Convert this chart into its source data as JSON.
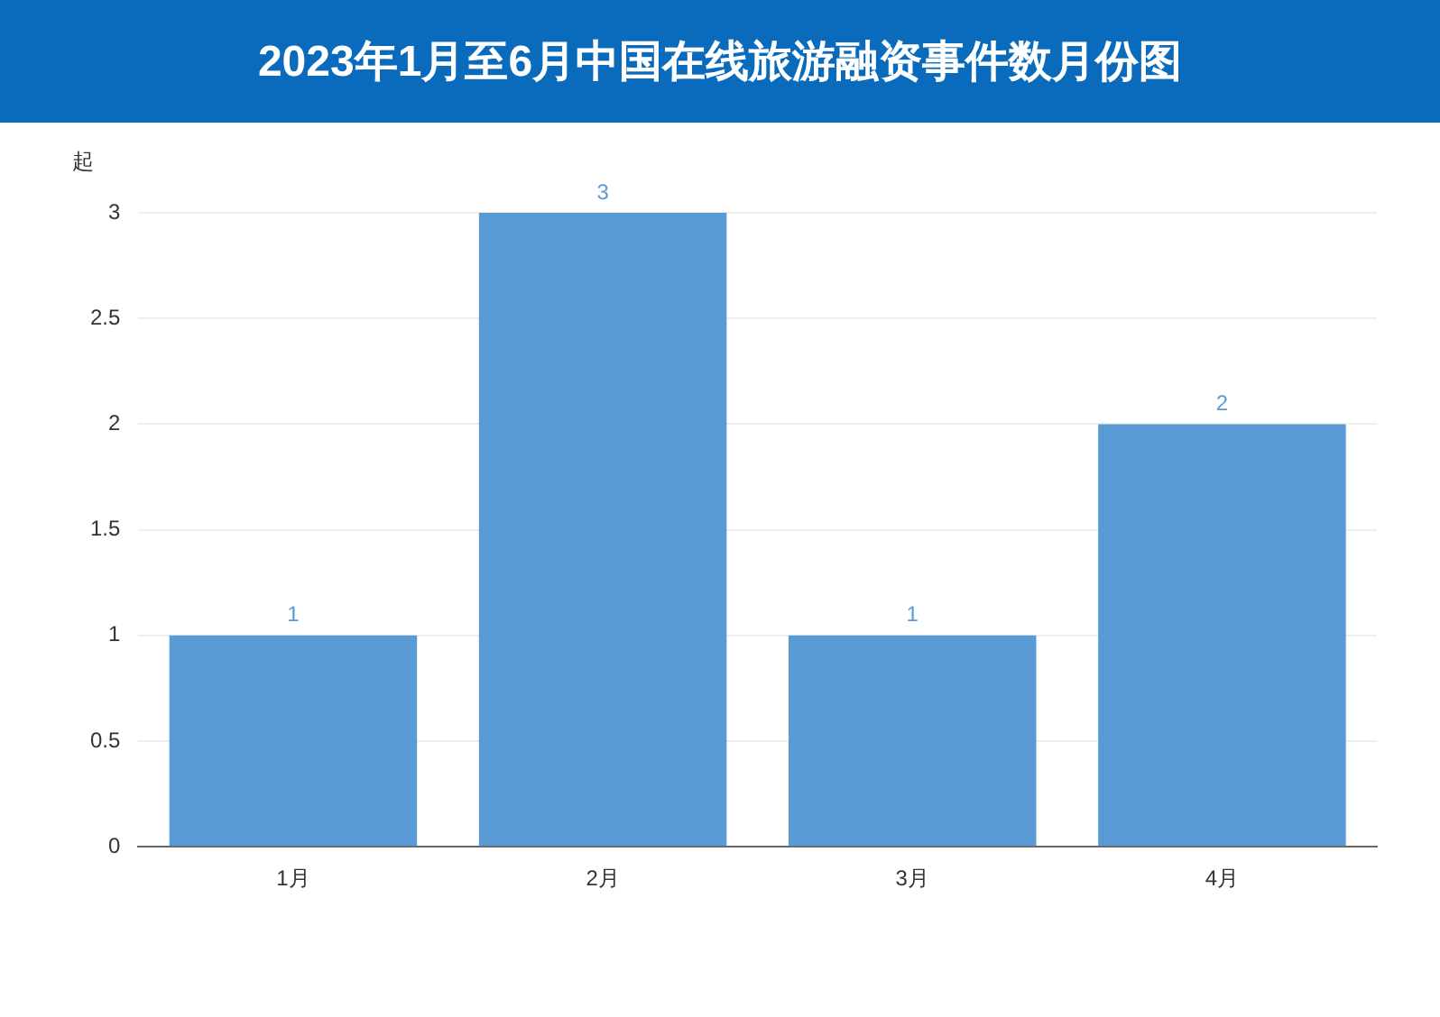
{
  "chart_data": {
    "type": "bar",
    "title": "2023年1月至6月中国在线旅游融资事件数月份图",
    "ylabel": "起",
    "categories": [
      "1月",
      "2月",
      "3月",
      "4月"
    ],
    "values": [
      1,
      3,
      1,
      2
    ],
    "color": "#5b9bd5",
    "ylim": [
      0,
      3
    ],
    "yticks": [
      0,
      0.5,
      1,
      1.5,
      2,
      2.5,
      3
    ],
    "grid": "y",
    "data_labels": true
  }
}
